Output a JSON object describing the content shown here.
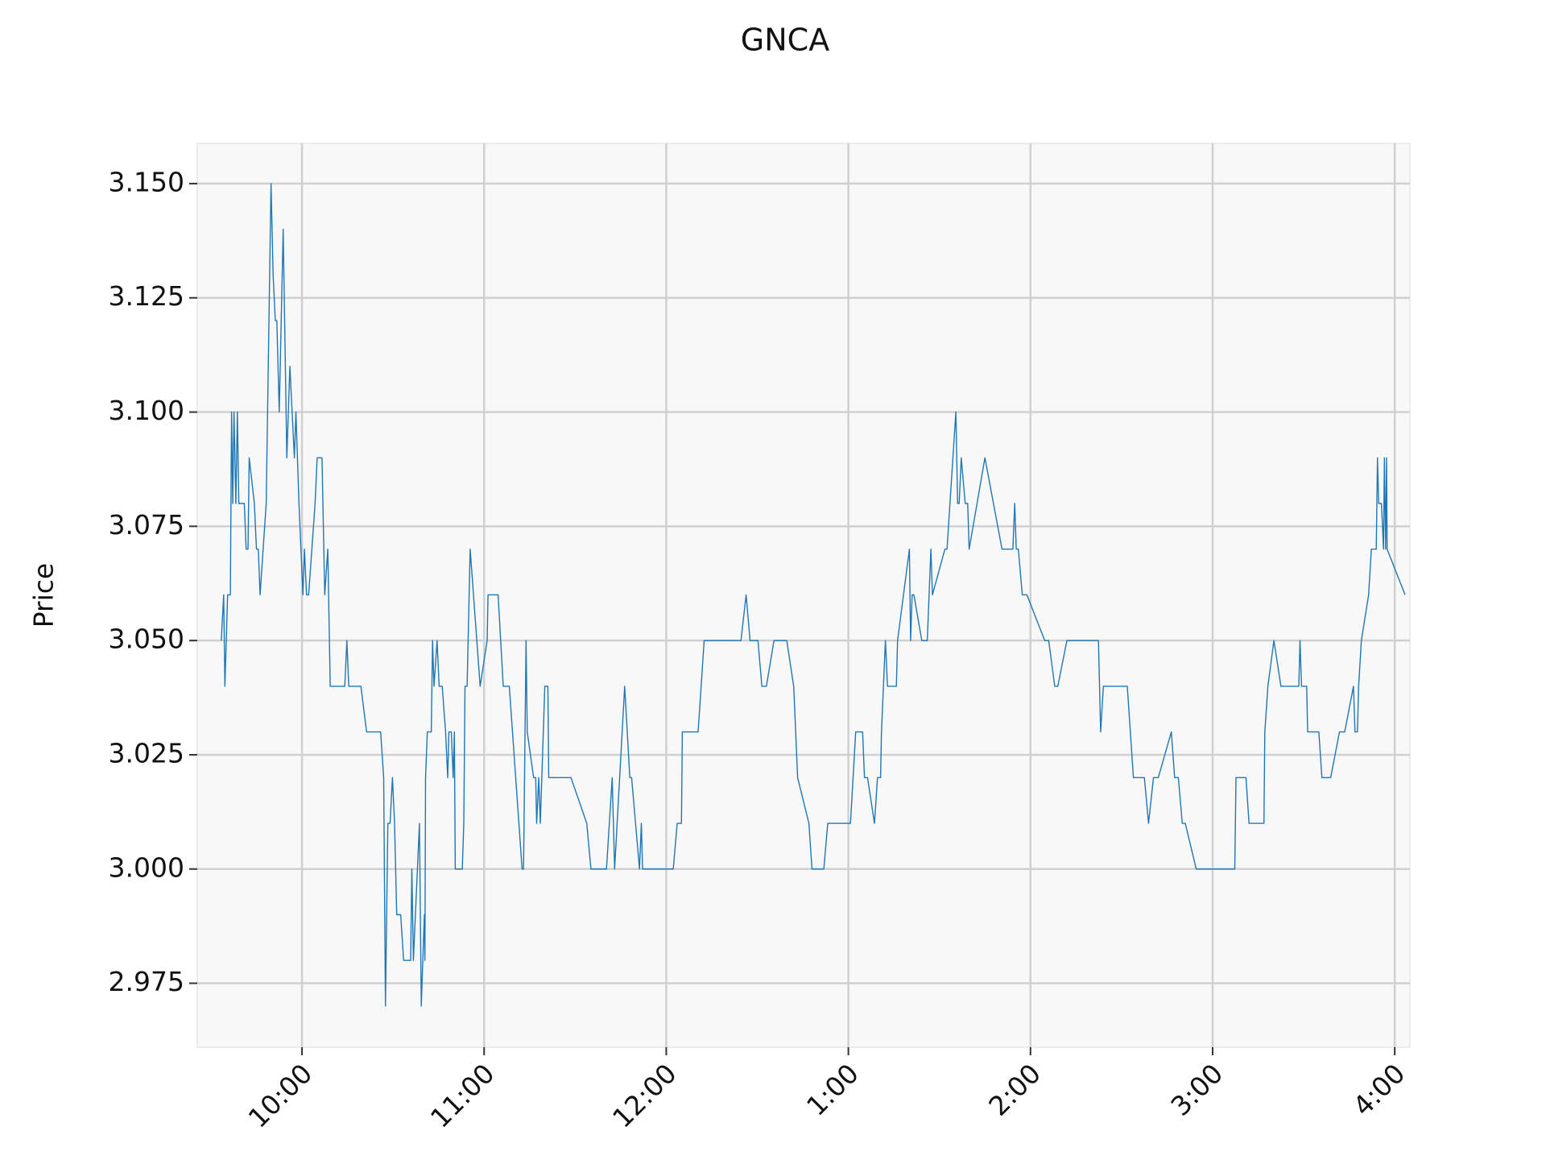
{
  "chart_data": {
    "type": "line",
    "title": "GNCA",
    "y_label": "Price",
    "color": "#1f77b4",
    "grid": true,
    "xlim": [
      565.5,
      965
    ],
    "xticks": [
      {
        "value": 600,
        "label": "10:00"
      },
      {
        "value": 660,
        "label": "11:00"
      },
      {
        "value": 720,
        "label": "12:00"
      },
      {
        "value": 780,
        "label": "1:00"
      },
      {
        "value": 840,
        "label": "2:00"
      },
      {
        "value": 900,
        "label": "3:00"
      },
      {
        "value": 960,
        "label": "4:00"
      }
    ],
    "ylim": [
      2.961,
      3.1588
    ],
    "yticks": [
      2.975,
      {
        "value": 3.0,
        "label": "3.000"
      },
      3.025,
      {
        "value": 3.05,
        "label": "3.050"
      },
      3.075,
      {
        "value": 3.1,
        "label": "3.100"
      },
      3.125,
      {
        "value": 3.15,
        "label": "3.150"
      }
    ],
    "x": [
      573.4,
      574.2,
      574.6,
      575.5,
      576.4,
      576.8,
      577.2,
      577.6,
      578.2,
      578.7,
      579.2,
      581,
      581.6,
      582.2,
      582.6,
      584.3,
      585,
      585.6,
      586.2,
      588.2,
      589.8,
      590.5,
      591.2,
      591.7,
      592.5,
      593.8,
      595,
      596,
      597.5,
      598,
      599,
      600.3,
      600.8,
      601.5,
      602.2,
      604.3,
      605,
      606.6,
      607.5,
      608.5,
      609.3,
      614.1,
      614.8,
      615.4,
      619.4,
      621.3,
      625.9,
      626.9,
      627.5,
      628.3,
      629,
      629.8,
      630.5,
      631.2,
      632.5,
      633.5,
      635.8,
      636.2,
      636.7,
      638.7,
      639.3,
      640.3,
      640.5,
      640.7,
      641.3,
      642.6,
      643,
      643.5,
      644.5,
      645.2,
      646.2,
      647.3,
      648,
      648.4,
      649.2,
      649.8,
      650.2,
      650.5,
      652.8,
      653.3,
      653.7,
      654.4,
      655.4,
      658.7,
      661,
      661.3,
      664.6,
      666.3,
      668.3,
      672.5,
      673,
      673.8,
      674.2,
      676.3,
      677,
      677.3,
      678,
      678.5,
      679,
      680,
      681,
      681.3,
      688.6,
      693.8,
      695.2,
      699.7,
      700.3,
      702.2,
      703,
      706.3,
      708,
      708.6,
      711.2,
      711.8,
      712.2,
      722.3,
      723.6,
      725,
      725.3,
      730.5,
      732.5,
      744.6,
      746.3,
      747.6,
      750.2,
      751.5,
      753,
      755.5,
      759.7,
      762,
      763.3,
      767,
      768,
      771.9,
      773.2,
      780.7,
      782.4,
      784.7,
      785.3,
      786.3,
      788.6,
      789.6,
      790.6,
      790.9,
      792.2,
      792.9,
      795.8,
      796.2,
      800.1,
      800.5,
      801,
      801.6,
      804.2,
      806,
      807.2,
      807.7,
      811.8,
      812.5,
      815.4,
      816,
      816.5,
      817.2,
      818.5,
      819.3,
      819.8,
      822.4,
      825,
      830.6,
      834.2,
      834.8,
      835.3,
      836,
      837.3,
      838.8,
      844.7,
      846,
      848,
      849,
      852,
      858.5,
      862.4,
      863.1,
      864,
      871.9,
      873.9,
      877.5,
      878.9,
      880.5,
      882.1,
      886.4,
      887.5,
      888.7,
      890,
      891,
      894.6,
      899.5,
      903,
      907.3,
      907.7,
      911,
      912,
      916.9,
      917.2,
      918.2,
      920.2,
      922.5,
      925.5,
      928.4,
      928.8,
      929.3,
      931,
      931.3,
      935,
      936,
      938.9,
      941.8,
      943.5,
      946.4,
      946.9,
      947.7,
      948.1,
      949,
      951.4,
      952.3,
      953.9,
      954.3,
      954.7,
      955.6,
      956.3,
      956.6,
      957,
      957.3,
      957.5,
      963.4
    ],
    "values": [
      3.05,
      3.06,
      3.04,
      3.06,
      3.06,
      3.1,
      3.08,
      3.1,
      3.08,
      3.1,
      3.08,
      3.08,
      3.07,
      3.07,
      3.09,
      3.08,
      3.07,
      3.07,
      3.06,
      3.08,
      3.15,
      3.13,
      3.12,
      3.12,
      3.1,
      3.14,
      3.09,
      3.11,
      3.09,
      3.1,
      3.08,
      3.06,
      3.07,
      3.06,
      3.06,
      3.08,
      3.09,
      3.09,
      3.06,
      3.07,
      3.04,
      3.04,
      3.05,
      3.04,
      3.04,
      3.03,
      3.03,
      3.02,
      2.97,
      3.01,
      3.01,
      3.02,
      3.01,
      2.99,
      2.99,
      2.98,
      2.98,
      3.0,
      2.98,
      3.01,
      2.97,
      2.99,
      2.98,
      3.02,
      3.03,
      3.03,
      3.05,
      3.04,
      3.05,
      3.04,
      3.04,
      3.03,
      3.02,
      3.03,
      3.03,
      3.02,
      3.03,
      3.0,
      3.0,
      3.01,
      3.04,
      3.04,
      3.07,
      3.04,
      3.05,
      3.06,
      3.06,
      3.04,
      3.04,
      3.0,
      3.0,
      3.05,
      3.03,
      3.02,
      3.02,
      3.01,
      3.02,
      3.01,
      3.02,
      3.04,
      3.04,
      3.02,
      3.02,
      3.01,
      3.0,
      3.0,
      3.0,
      3.02,
      3.0,
      3.04,
      3.02,
      3.02,
      3.0,
      3.01,
      3.0,
      3.0,
      3.01,
      3.01,
      3.03,
      3.03,
      3.05,
      3.05,
      3.06,
      3.05,
      3.05,
      3.04,
      3.04,
      3.05,
      3.05,
      3.04,
      3.02,
      3.01,
      3.0,
      3.0,
      3.01,
      3.01,
      3.03,
      3.03,
      3.02,
      3.02,
      3.01,
      3.02,
      3.02,
      3.03,
      3.05,
      3.04,
      3.04,
      3.05,
      3.07,
      3.05,
      3.06,
      3.06,
      3.05,
      3.05,
      3.07,
      3.06,
      3.07,
      3.07,
      3.1,
      3.08,
      3.08,
      3.09,
      3.08,
      3.08,
      3.07,
      3.08,
      3.09,
      3.07,
      3.07,
      3.08,
      3.07,
      3.07,
      3.06,
      3.06,
      3.05,
      3.05,
      3.04,
      3.04,
      3.05,
      3.05,
      3.05,
      3.03,
      3.04,
      3.04,
      3.02,
      3.02,
      3.01,
      3.02,
      3.02,
      3.03,
      3.02,
      3.02,
      3.01,
      3.01,
      3.0,
      3.0,
      3.0,
      3.0,
      3.02,
      3.02,
      3.01,
      3.01,
      3.03,
      3.04,
      3.05,
      3.04,
      3.04,
      3.04,
      3.05,
      3.04,
      3.04,
      3.03,
      3.03,
      3.02,
      3.02,
      3.03,
      3.03,
      3.04,
      3.03,
      3.03,
      3.04,
      3.05,
      3.06,
      3.07,
      3.07,
      3.09,
      3.08,
      3.08,
      3.07,
      3.09,
      3.07,
      3.09,
      3.07,
      3.06
    ]
  }
}
